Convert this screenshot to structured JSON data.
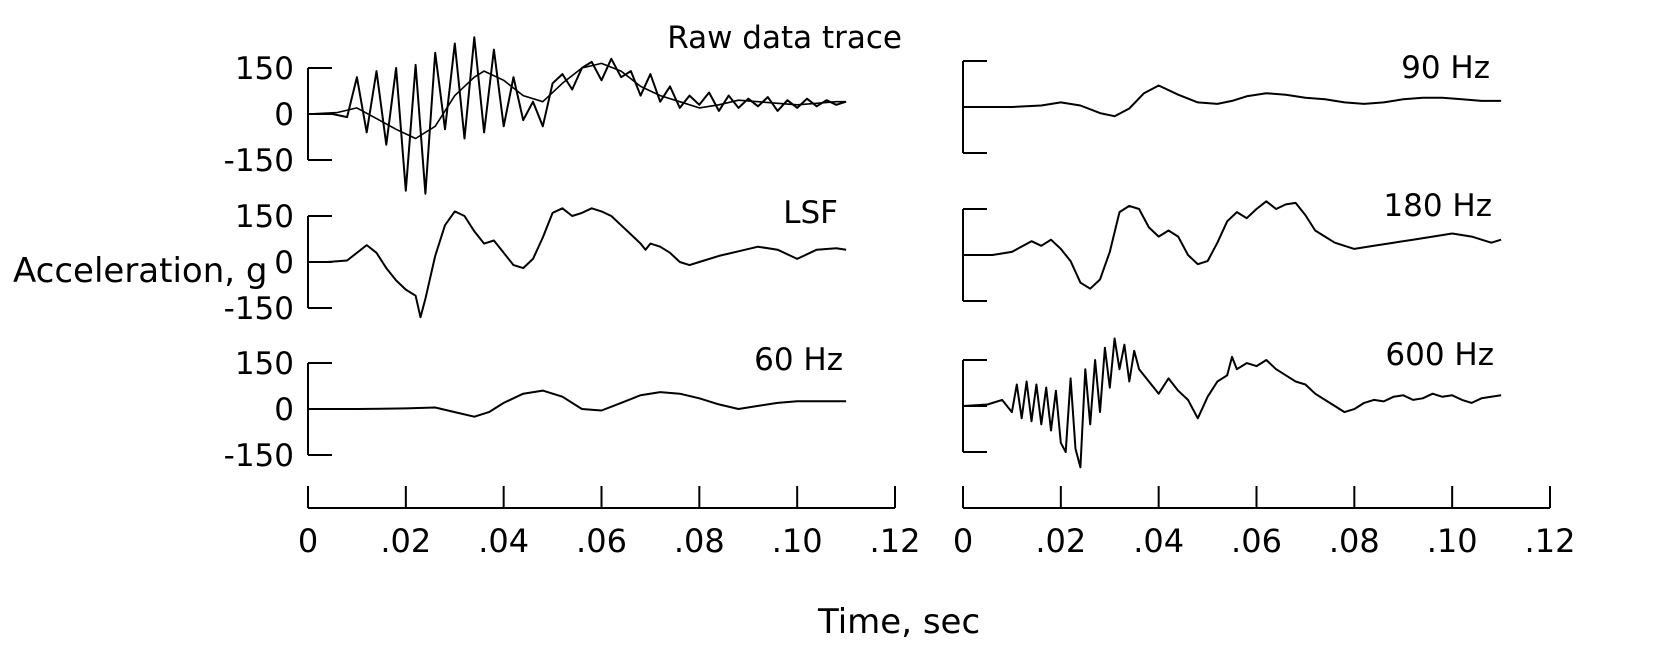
{
  "figure": {
    "ylabel": "Acceleration, g",
    "xlabel": "Time, sec"
  },
  "chart_data": [
    {
      "type": "line",
      "title": "Raw data trace",
      "ytick_labels": [
        "150",
        "0",
        "-150"
      ],
      "ylim": [
        -150,
        150
      ],
      "xlim": [
        0,
        0.12
      ],
      "series": [
        {
          "x": [
            0,
            0.005,
            0.008,
            0.01,
            0.012,
            0.014,
            0.016,
            0.018,
            0.02,
            0.022,
            0.024,
            0.026,
            0.028,
            0.03,
            0.032,
            0.034,
            0.036,
            0.038,
            0.04,
            0.042,
            0.044,
            0.046,
            0.048,
            0.05,
            0.052,
            0.054,
            0.056,
            0.058,
            0.06,
            0.062,
            0.064,
            0.066,
            0.068,
            0.07,
            0.072,
            0.074,
            0.076,
            0.078,
            0.08,
            0.082,
            0.084,
            0.086,
            0.088,
            0.09,
            0.092,
            0.094,
            0.096,
            0.098,
            0.1,
            0.102,
            0.104,
            0.106,
            0.108,
            0.11
          ],
          "y": [
            0,
            0,
            -10,
            120,
            -60,
            140,
            -100,
            150,
            -250,
            160,
            -260,
            200,
            -50,
            230,
            -80,
            250,
            -60,
            210,
            -40,
            120,
            -20,
            40,
            -40,
            100,
            130,
            80,
            150,
            170,
            110,
            180,
            120,
            140,
            60,
            130,
            40,
            90,
            20,
            60,
            30,
            70,
            10,
            60,
            20,
            50,
            25,
            55,
            10,
            45,
            20,
            50,
            25,
            45,
            30,
            40
          ]
        },
        {
          "x": [
            0,
            0.006,
            0.01,
            0.014,
            0.018,
            0.022,
            0.026,
            0.03,
            0.034,
            0.036,
            0.04,
            0.044,
            0.048,
            0.052,
            0.056,
            0.06,
            0.064,
            0.068,
            0.072,
            0.076,
            0.08,
            0.084,
            0.088,
            0.092,
            0.096,
            0.1,
            0.104,
            0.108,
            0.11
          ],
          "y": [
            0,
            5,
            20,
            -15,
            -50,
            -80,
            -40,
            60,
            120,
            140,
            110,
            60,
            40,
            100,
            150,
            165,
            140,
            90,
            60,
            40,
            20,
            30,
            45,
            40,
            35,
            30,
            35,
            40,
            40
          ]
        }
      ]
    },
    {
      "type": "line",
      "title": "LSF",
      "ytick_labels": [
        "150",
        "0",
        "-150"
      ],
      "ylim": [
        -150,
        150
      ],
      "xlim": [
        0,
        0.12
      ],
      "series": [
        {
          "x": [
            0,
            0.004,
            0.008,
            0.012,
            0.014,
            0.016,
            0.018,
            0.02,
            0.022,
            0.023,
            0.024,
            0.026,
            0.028,
            0.03,
            0.032,
            0.034,
            0.036,
            0.038,
            0.04,
            0.042,
            0.044,
            0.046,
            0.048,
            0.05,
            0.052,
            0.054,
            0.056,
            0.058,
            0.06,
            0.062,
            0.064,
            0.066,
            0.068,
            0.069,
            0.07,
            0.072,
            0.074,
            0.076,
            0.078,
            0.08,
            0.084,
            0.088,
            0.092,
            0.096,
            0.1,
            0.104,
            0.108,
            0.11
          ],
          "y": [
            0,
            0,
            5,
            55,
            30,
            -20,
            -60,
            -90,
            -110,
            -180,
            -120,
            20,
            120,
            165,
            150,
            100,
            60,
            70,
            30,
            -10,
            -20,
            10,
            80,
            160,
            175,
            150,
            160,
            175,
            165,
            150,
            120,
            90,
            60,
            40,
            60,
            50,
            30,
            0,
            -10,
            0,
            20,
            35,
            50,
            40,
            10,
            40,
            45,
            40
          ]
        }
      ]
    },
    {
      "type": "line",
      "title": "60 Hz",
      "ytick_labels": [
        "150",
        "0",
        "-150"
      ],
      "ylim": [
        -150,
        150
      ],
      "xlim": [
        0,
        0.12
      ],
      "series": [
        {
          "x": [
            0,
            0.01,
            0.02,
            0.026,
            0.03,
            0.034,
            0.037,
            0.04,
            0.044,
            0.048,
            0.052,
            0.056,
            0.06,
            0.064,
            0.068,
            0.072,
            0.076,
            0.08,
            0.084,
            0.088,
            0.092,
            0.096,
            0.1,
            0.104,
            0.108,
            0.11
          ],
          "y": [
            0,
            0,
            2,
            5,
            -10,
            -25,
            -10,
            20,
            50,
            60,
            40,
            0,
            -5,
            20,
            45,
            55,
            50,
            35,
            15,
            0,
            10,
            20,
            25,
            25,
            25,
            25
          ]
        }
      ]
    },
    {
      "type": "line",
      "title": "90 Hz",
      "ylim": [
        -150,
        150
      ],
      "xlim": [
        0,
        0.12
      ],
      "series": [
        {
          "x": [
            0,
            0.01,
            0.016,
            0.02,
            0.024,
            0.028,
            0.031,
            0.034,
            0.037,
            0.04,
            0.044,
            0.048,
            0.052,
            0.055,
            0.058,
            0.062,
            0.066,
            0.07,
            0.074,
            0.078,
            0.082,
            0.086,
            0.09,
            0.094,
            0.098,
            0.102,
            0.106,
            0.11
          ],
          "y": [
            0,
            0,
            5,
            15,
            5,
            -20,
            -30,
            -5,
            45,
            70,
            40,
            15,
            10,
            20,
            35,
            45,
            40,
            30,
            25,
            15,
            10,
            15,
            25,
            30,
            30,
            25,
            20,
            20
          ]
        }
      ]
    },
    {
      "type": "line",
      "title": "180 Hz",
      "ylim": [
        -150,
        150
      ],
      "xlim": [
        0,
        0.12
      ],
      "series": [
        {
          "x": [
            0,
            0.006,
            0.01,
            0.014,
            0.016,
            0.018,
            0.02,
            0.022,
            0.024,
            0.026,
            0.028,
            0.03,
            0.032,
            0.034,
            0.036,
            0.038,
            0.04,
            0.042,
            0.044,
            0.046,
            0.048,
            0.05,
            0.052,
            0.054,
            0.056,
            0.058,
            0.06,
            0.062,
            0.064,
            0.066,
            0.068,
            0.07,
            0.072,
            0.074,
            0.076,
            0.078,
            0.08,
            0.084,
            0.088,
            0.092,
            0.096,
            0.1,
            0.104,
            0.108,
            0.11
          ],
          "y": [
            0,
            0,
            10,
            45,
            30,
            50,
            20,
            -20,
            -90,
            -110,
            -80,
            10,
            140,
            160,
            150,
            90,
            60,
            80,
            60,
            0,
            -30,
            -20,
            40,
            110,
            140,
            120,
            150,
            175,
            150,
            165,
            170,
            130,
            80,
            60,
            40,
            30,
            20,
            30,
            40,
            50,
            60,
            70,
            60,
            40,
            50
          ]
        }
      ]
    },
    {
      "type": "line",
      "title": "600 Hz",
      "ylim": [
        -150,
        150
      ],
      "xlim": [
        0,
        0.12
      ],
      "series": [
        {
          "x": [
            0,
            0.005,
            0.008,
            0.01,
            0.011,
            0.012,
            0.013,
            0.014,
            0.015,
            0.016,
            0.017,
            0.018,
            0.019,
            0.02,
            0.021,
            0.022,
            0.023,
            0.024,
            0.025,
            0.026,
            0.027,
            0.028,
            0.029,
            0.03,
            0.031,
            0.032,
            0.033,
            0.034,
            0.035,
            0.036,
            0.038,
            0.04,
            0.042,
            0.044,
            0.046,
            0.048,
            0.05,
            0.052,
            0.054,
            0.055,
            0.056,
            0.058,
            0.06,
            0.062,
            0.064,
            0.066,
            0.068,
            0.07,
            0.072,
            0.074,
            0.076,
            0.078,
            0.08,
            0.082,
            0.084,
            0.086,
            0.088,
            0.09,
            0.092,
            0.094,
            0.096,
            0.098,
            0.1,
            0.102,
            0.104,
            0.106,
            0.108,
            0.11
          ],
          "y": [
            0,
            5,
            20,
            -20,
            70,
            -40,
            80,
            -50,
            70,
            -60,
            60,
            -80,
            50,
            -120,
            -150,
            90,
            -140,
            -200,
            120,
            -60,
            150,
            -20,
            190,
            60,
            220,
            120,
            200,
            80,
            180,
            120,
            80,
            40,
            90,
            50,
            20,
            -40,
            30,
            80,
            100,
            160,
            120,
            140,
            130,
            150,
            120,
            100,
            80,
            70,
            40,
            20,
            0,
            -20,
            -10,
            10,
            20,
            15,
            30,
            35,
            20,
            25,
            40,
            30,
            35,
            20,
            10,
            25,
            30,
            35
          ]
        }
      ]
    }
  ],
  "xtick_labels": [
    "0",
    ".02",
    ".04",
    ".06",
    ".08",
    ".10",
    ".12"
  ]
}
